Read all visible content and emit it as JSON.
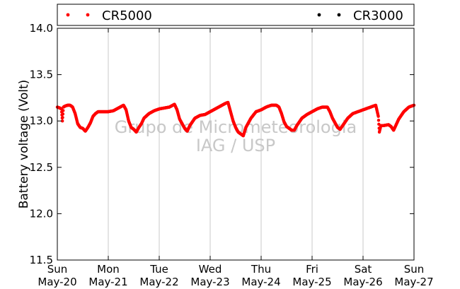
{
  "chart_data": {
    "type": "scatter",
    "ylabel": "Battery voltage (Volt)",
    "xlabel": "",
    "ylim": [
      11.5,
      14.0
    ],
    "yticks": [
      11.5,
      12.0,
      12.5,
      13.0,
      13.5,
      14.0
    ],
    "ytick_labels": [
      "11.5",
      "12.0",
      "12.5",
      "13.0",
      "13.5",
      "14.0"
    ],
    "xlim": [
      0,
      7
    ],
    "xticks": [
      {
        "day": 0,
        "line1": "Sun",
        "line2": "May-20"
      },
      {
        "day": 1,
        "line1": "Mon",
        "line2": "May-21"
      },
      {
        "day": 2,
        "line1": "Tue",
        "line2": "May-22"
      },
      {
        "day": 3,
        "line1": "Wed",
        "line2": "May-23"
      },
      {
        "day": 4,
        "line1": "Thu",
        "line2": "May-24"
      },
      {
        "day": 5,
        "line1": "Fri",
        "line2": "May-25"
      },
      {
        "day": 6,
        "line1": "Sat",
        "line2": "May-26"
      },
      {
        "day": 7,
        "line1": "Sun",
        "line2": "May-27"
      }
    ],
    "grid": "x",
    "legend_placement": "top",
    "watermark": [
      "Grupo de Micrometeorologia",
      "IAG / USP"
    ],
    "series": [
      {
        "name": "CR5000",
        "color": "#ff0000",
        "points": [
          [
            0.0,
            13.15
          ],
          [
            0.05,
            13.14
          ],
          [
            0.08,
            13.13
          ],
          [
            0.1,
            13.0
          ],
          [
            0.12,
            13.15
          ],
          [
            0.15,
            13.16
          ],
          [
            0.2,
            13.17
          ],
          [
            0.25,
            13.17
          ],
          [
            0.3,
            13.15
          ],
          [
            0.35,
            13.08
          ],
          [
            0.4,
            12.97
          ],
          [
            0.45,
            12.93
          ],
          [
            0.5,
            12.92
          ],
          [
            0.55,
            12.89
          ],
          [
            0.6,
            12.93
          ],
          [
            0.65,
            12.98
          ],
          [
            0.7,
            13.05
          ],
          [
            0.75,
            13.08
          ],
          [
            0.8,
            13.1
          ],
          [
            0.9,
            13.1
          ],
          [
            1.0,
            13.1
          ],
          [
            1.1,
            13.11
          ],
          [
            1.2,
            13.14
          ],
          [
            1.3,
            13.17
          ],
          [
            1.35,
            13.12
          ],
          [
            1.4,
            13.0
          ],
          [
            1.45,
            12.93
          ],
          [
            1.5,
            12.91
          ],
          [
            1.55,
            12.88
          ],
          [
            1.6,
            12.93
          ],
          [
            1.65,
            12.97
          ],
          [
            1.7,
            13.03
          ],
          [
            1.8,
            13.08
          ],
          [
            1.9,
            13.11
          ],
          [
            2.0,
            13.13
          ],
          [
            2.1,
            13.14
          ],
          [
            2.2,
            13.15
          ],
          [
            2.3,
            13.18
          ],
          [
            2.35,
            13.12
          ],
          [
            2.4,
            13.02
          ],
          [
            2.45,
            12.97
          ],
          [
            2.5,
            12.92
          ],
          [
            2.55,
            12.89
          ],
          [
            2.6,
            12.95
          ],
          [
            2.65,
            12.99
          ],
          [
            2.7,
            13.03
          ],
          [
            2.8,
            13.06
          ],
          [
            2.9,
            13.07
          ],
          [
            3.0,
            13.1
          ],
          [
            3.1,
            13.13
          ],
          [
            3.2,
            13.16
          ],
          [
            3.3,
            13.19
          ],
          [
            3.35,
            13.2
          ],
          [
            3.4,
            13.1
          ],
          [
            3.45,
            13.0
          ],
          [
            3.5,
            12.93
          ],
          [
            3.55,
            12.88
          ],
          [
            3.6,
            12.86
          ],
          [
            3.65,
            12.84
          ],
          [
            3.7,
            12.93
          ],
          [
            3.75,
            12.98
          ],
          [
            3.8,
            13.03
          ],
          [
            3.9,
            13.1
          ],
          [
            4.0,
            13.12
          ],
          [
            4.1,
            13.15
          ],
          [
            4.2,
            13.17
          ],
          [
            4.3,
            13.17
          ],
          [
            4.35,
            13.15
          ],
          [
            4.4,
            13.08
          ],
          [
            4.45,
            12.99
          ],
          [
            4.5,
            12.94
          ],
          [
            4.55,
            12.92
          ],
          [
            4.6,
            12.9
          ],
          [
            4.65,
            12.9
          ],
          [
            4.7,
            12.95
          ],
          [
            4.75,
            12.99
          ],
          [
            4.8,
            13.03
          ],
          [
            4.9,
            13.07
          ],
          [
            5.0,
            13.1
          ],
          [
            5.1,
            13.13
          ],
          [
            5.2,
            13.15
          ],
          [
            5.3,
            13.15
          ],
          [
            5.35,
            13.1
          ],
          [
            5.4,
            13.03
          ],
          [
            5.45,
            12.98
          ],
          [
            5.5,
            12.93
          ],
          [
            5.55,
            12.91
          ],
          [
            5.6,
            12.95
          ],
          [
            5.65,
            12.99
          ],
          [
            5.7,
            13.03
          ],
          [
            5.8,
            13.08
          ],
          [
            5.9,
            13.1
          ],
          [
            6.0,
            13.12
          ],
          [
            6.1,
            13.14
          ],
          [
            6.2,
            13.16
          ],
          [
            6.25,
            13.17
          ],
          [
            6.3,
            13.05
          ],
          [
            6.32,
            12.88
          ],
          [
            6.35,
            12.95
          ],
          [
            6.4,
            12.95
          ],
          [
            6.5,
            12.96
          ],
          [
            6.55,
            12.94
          ],
          [
            6.6,
            12.9
          ],
          [
            6.65,
            12.96
          ],
          [
            6.7,
            13.02
          ],
          [
            6.8,
            13.1
          ],
          [
            6.9,
            13.15
          ],
          [
            7.0,
            13.17
          ]
        ]
      },
      {
        "name": "CR3000",
        "color": "#000000",
        "points": []
      }
    ]
  }
}
